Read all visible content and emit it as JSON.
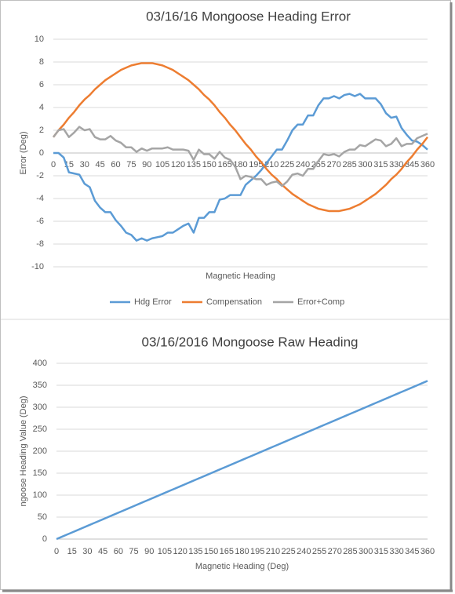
{
  "chart_data": [
    {
      "type": "line",
      "title": "03/16/16 Mongoose Heading Error",
      "xlabel": "Magnetic Heading",
      "ylabel": "Error (Deg)",
      "x": [
        0,
        5,
        10,
        15,
        20,
        25,
        30,
        35,
        40,
        45,
        50,
        55,
        60,
        65,
        70,
        75,
        80,
        85,
        90,
        95,
        100,
        105,
        110,
        115,
        120,
        125,
        130,
        135,
        140,
        145,
        150,
        155,
        160,
        165,
        170,
        175,
        180,
        185,
        190,
        195,
        200,
        205,
        210,
        215,
        220,
        225,
        230,
        235,
        240,
        245,
        250,
        255,
        260,
        265,
        270,
        275,
        280,
        285,
        290,
        295,
        300,
        305,
        310,
        315,
        320,
        325,
        330,
        335,
        340,
        345,
        350,
        355,
        360
      ],
      "xlim": [
        0,
        360
      ],
      "xticks": [
        0,
        15,
        30,
        45,
        60,
        75,
        90,
        105,
        120,
        135,
        150,
        165,
        180,
        195,
        210,
        225,
        240,
        255,
        270,
        285,
        300,
        315,
        330,
        345,
        360
      ],
      "ylim": [
        -10,
        10
      ],
      "yticks": [
        -10,
        -8,
        -6,
        -4,
        -2,
        0,
        2,
        4,
        6,
        8,
        10
      ],
      "grid": true,
      "legend": "bottom",
      "series": [
        {
          "name": "Hdg Error",
          "color": "#5b9bd5",
          "values": [
            0,
            0,
            -0.4,
            -1.7,
            -1.8,
            -1.9,
            -2.7,
            -3.0,
            -4.2,
            -4.8,
            -5.2,
            -5.2,
            -5.9,
            -6.4,
            -7.0,
            -7.2,
            -7.7,
            -7.5,
            -7.7,
            -7.5,
            -7.4,
            -7.3,
            -7.0,
            -7.0,
            -6.7,
            -6.4,
            -6.2,
            -7.0,
            -5.7,
            -5.7,
            -5.2,
            -5.2,
            -4.1,
            -4.0,
            -3.7,
            -3.7,
            -3.7,
            -2.8,
            -2.4,
            -2.0,
            -1.5,
            -0.9,
            -0.3,
            0.3,
            0.3,
            1.1,
            2.0,
            2.5,
            2.5,
            3.3,
            3.3,
            4.2,
            4.8,
            4.8,
            5.0,
            4.8,
            5.1,
            5.2,
            5.0,
            5.2,
            4.8,
            4.8,
            4.8,
            4.3,
            3.5,
            3.1,
            3.2,
            2.2,
            1.6,
            1.1,
            1.0,
            0.7,
            0.3
          ]
        },
        {
          "name": "Compensation",
          "color": "#ed7d31",
          "values": [
            1.4,
            2.0,
            2.5,
            3.1,
            3.6,
            4.2,
            4.7,
            5.1,
            5.6,
            6.0,
            6.4,
            6.7,
            7.0,
            7.3,
            7.5,
            7.7,
            7.8,
            7.9,
            7.9,
            7.9,
            7.8,
            7.7,
            7.5,
            7.3,
            7.0,
            6.7,
            6.4,
            6.0,
            5.6,
            5.1,
            4.7,
            4.2,
            3.6,
            3.1,
            2.5,
            2.0,
            1.4,
            0.8,
            0.3,
            -0.3,
            -0.8,
            -1.4,
            -1.9,
            -2.3,
            -2.8,
            -3.2,
            -3.6,
            -3.9,
            -4.2,
            -4.5,
            -4.7,
            -4.9,
            -5.0,
            -5.1,
            -5.1,
            -5.1,
            -5.0,
            -4.9,
            -4.7,
            -4.5,
            -4.2,
            -3.9,
            -3.6,
            -3.2,
            -2.8,
            -2.3,
            -1.9,
            -1.4,
            -0.8,
            -0.3,
            0.3,
            0.8,
            1.4
          ]
        },
        {
          "name": "Error+Comp",
          "color": "#a5a5a5",
          "values": [
            1.4,
            2.0,
            2.1,
            1.4,
            1.8,
            2.3,
            2.0,
            2.1,
            1.4,
            1.2,
            1.2,
            1.5,
            1.1,
            0.9,
            0.5,
            0.5,
            0.1,
            0.4,
            0.2,
            0.4,
            0.4,
            0.4,
            0.5,
            0.3,
            0.3,
            0.3,
            0.2,
            -0.6,
            0.3,
            -0.1,
            -0.1,
            -0.5,
            0.1,
            -0.4,
            -0.6,
            -1.2,
            -2.3,
            -2.0,
            -2.1,
            -2.3,
            -2.3,
            -2.8,
            -2.6,
            -2.5,
            -2.9,
            -2.5,
            -1.9,
            -1.8,
            -2.0,
            -1.4,
            -1.4,
            -0.7,
            -0.1,
            -0.2,
            -0.1,
            -0.3,
            0.1,
            0.3,
            0.3,
            0.7,
            0.6,
            0.9,
            1.2,
            1.1,
            0.6,
            0.8,
            1.3,
            0.6,
            0.8,
            0.8,
            1.3,
            1.5,
            1.7
          ]
        }
      ]
    },
    {
      "type": "line",
      "title": "03/16/2016 Mongoose Raw Heading",
      "xlabel": "Magnetic Heading (Deg)",
      "ylabel": "ngoose Heading Value (Deg)",
      "x": [
        0,
        5,
        10,
        15,
        20,
        25,
        30,
        35,
        40,
        45,
        50,
        55,
        60,
        65,
        70,
        75,
        80,
        85,
        90,
        95,
        100,
        105,
        110,
        115,
        120,
        125,
        130,
        135,
        140,
        145,
        150,
        155,
        160,
        165,
        170,
        175,
        180,
        185,
        190,
        195,
        200,
        205,
        210,
        215,
        220,
        225,
        230,
        235,
        240,
        245,
        250,
        255,
        260,
        265,
        270,
        275,
        280,
        285,
        290,
        295,
        300,
        305,
        310,
        315,
        320,
        325,
        330,
        335,
        340,
        345,
        350,
        355,
        360
      ],
      "xlim": [
        0,
        360
      ],
      "xticks": [
        0,
        15,
        30,
        45,
        60,
        75,
        90,
        105,
        120,
        135,
        150,
        165,
        180,
        195,
        210,
        225,
        240,
        255,
        270,
        285,
        300,
        315,
        330,
        345,
        360
      ],
      "ylim": [
        0,
        400
      ],
      "yticks": [
        0,
        50,
        100,
        150,
        200,
        250,
        300,
        350,
        400
      ],
      "grid": true,
      "color": "#5b9bd5",
      "values": [
        0,
        5,
        10,
        15,
        20,
        25,
        30,
        35,
        40,
        45,
        50,
        55,
        60,
        65,
        70,
        75,
        80,
        85,
        90,
        95,
        100,
        105,
        110,
        115,
        120,
        125,
        130,
        135,
        140,
        145,
        150,
        155,
        160,
        165,
        170,
        175,
        180,
        185,
        190,
        195,
        200,
        205,
        210,
        215,
        220,
        225,
        230,
        235,
        240,
        245,
        250,
        255,
        260,
        265,
        270,
        275,
        280,
        285,
        290,
        295,
        300,
        305,
        310,
        315,
        320,
        325,
        330,
        335,
        340,
        345,
        350,
        355,
        360
      ]
    }
  ]
}
